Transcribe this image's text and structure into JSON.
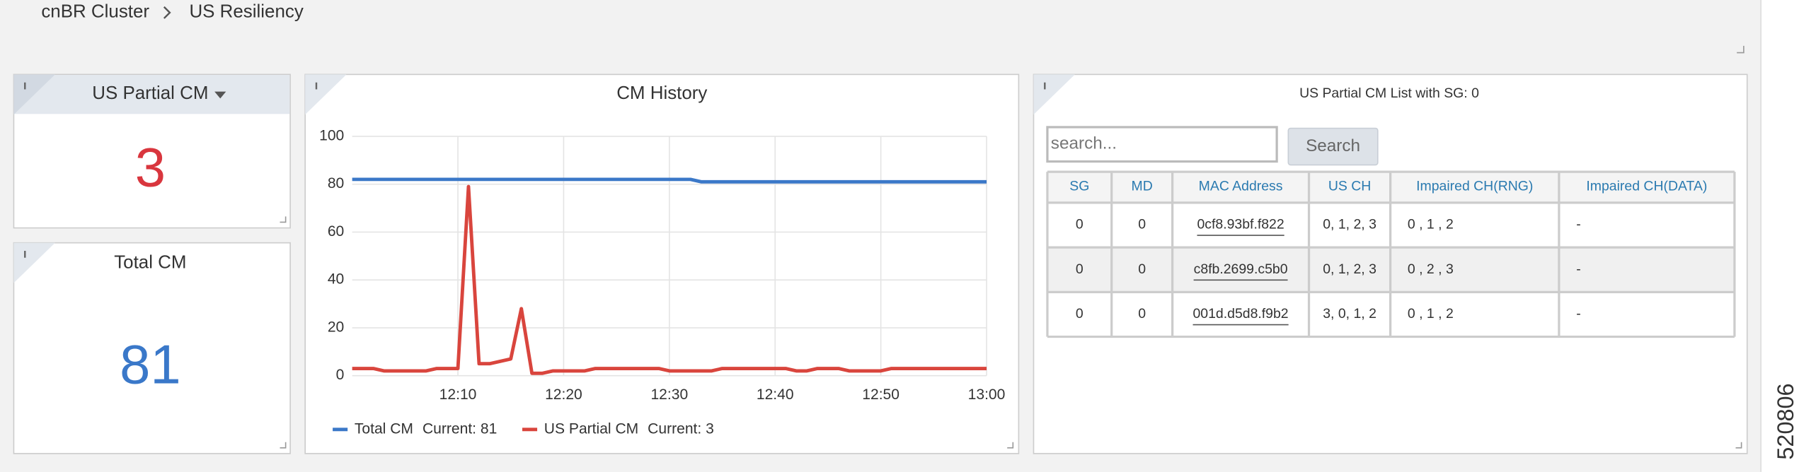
{
  "breadcrumb": {
    "root": "cnBR Cluster",
    "current": "US Resiliency"
  },
  "partial_cm": {
    "title": "US Partial CM",
    "value": 3
  },
  "total_cm": {
    "title": "Total CM",
    "value": 81
  },
  "cm_list": {
    "title": "US Partial CM List with SG: 0",
    "search_placeholder": "search...",
    "search_button": "Search",
    "columns": [
      "SG",
      "MD",
      "MAC Address",
      "US CH",
      "Impaired CH(RNG)",
      "Impaired CH(DATA)"
    ],
    "rows": [
      [
        0,
        0,
        "0cf8.93bf.f822",
        "0, 1, 2, 3",
        "0 , 1 , 2",
        "-"
      ],
      [
        0,
        0,
        "c8fb.2699.c5b0",
        "0, 1, 2, 3",
        "0 , 2 , 3",
        "-"
      ],
      [
        0,
        0,
        "001d.d5d8.f9b2",
        "3, 0, 1, 2",
        "0 , 1 , 2",
        "-"
      ]
    ]
  },
  "chart_data": {
    "type": "line",
    "title": "CM History",
    "x": [
      "12:00",
      "12:02",
      "12:03",
      "12:07",
      "12:08",
      "12:10",
      "12:11",
      "12:12",
      "12:13",
      "12:14",
      "12:15",
      "12:16",
      "12:17",
      "12:18",
      "12:19",
      "12:22",
      "12:23",
      "12:29",
      "12:30",
      "12:32",
      "12:33",
      "12:34",
      "12:35",
      "12:41",
      "12:42",
      "12:43",
      "12:44",
      "12:46",
      "12:47",
      "12:50",
      "12:51",
      "13:00"
    ],
    "series": [
      {
        "name": "Total CM",
        "legend_note": "Current: 81",
        "color": "#3b78c8",
        "values": [
          82,
          82,
          82,
          82,
          82,
          82,
          82,
          82,
          82,
          82,
          82,
          82,
          82,
          82,
          82,
          82,
          82,
          82,
          82,
          82,
          81,
          81,
          81,
          81,
          81,
          81,
          81,
          81,
          81,
          81,
          81,
          81
        ]
      },
      {
        "name": "US Partial CM",
        "legend_note": "Current: 3",
        "color": "#d9453d",
        "values": [
          3,
          3,
          2,
          2,
          3,
          3,
          79,
          5,
          5,
          6,
          7,
          28,
          1,
          1,
          2,
          2,
          3,
          3,
          2,
          2,
          2,
          2,
          3,
          3,
          2,
          2,
          3,
          3,
          2,
          2,
          3,
          3
        ]
      }
    ],
    "xlim": [
      "12:00",
      "13:00"
    ],
    "xticks": [
      "12:10",
      "12:20",
      "12:30",
      "12:40",
      "12:50",
      "13:00"
    ],
    "ylim": [
      0,
      100
    ],
    "yticks": [
      0,
      20,
      40,
      60,
      80,
      100
    ],
    "grid": true
  },
  "figure_id": "520806"
}
